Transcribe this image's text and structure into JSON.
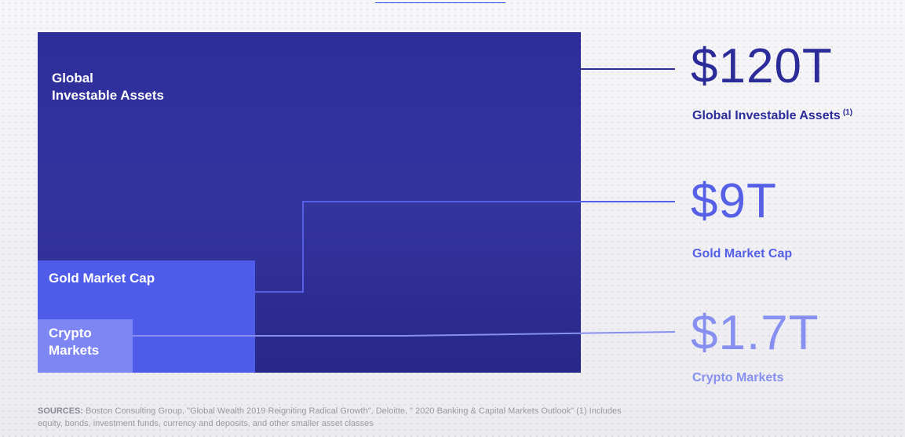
{
  "chart_data": {
    "type": "nested-area",
    "unit": "USD trillions",
    "items": [
      {
        "key": "global",
        "box_label": "Global\nInvestable Assets",
        "value": 120,
        "value_text": "$120T",
        "caption": "Global Investable Assets",
        "footnote": "(1)",
        "color": "#2e2e9b",
        "text_color": "#2b2b9a"
      },
      {
        "key": "gold",
        "box_label": "Gold Market Cap",
        "value": 9,
        "value_text": "$9T",
        "caption": "Gold Market Cap",
        "footnote": "",
        "color": "#4f5ce9",
        "text_color": "#5560e6"
      },
      {
        "key": "crypto",
        "box_label": "Crypto\nMarkets",
        "value": 1.7,
        "value_text": "$1.7T",
        "caption": "Crypto Markets",
        "footnote": "",
        "color": "#7d86f2",
        "text_color": "#8790f0"
      }
    ]
  },
  "sources": {
    "label": "SOURCES:",
    "text": "Boston Consulting Group, \"Global Wealth 2019 Reigniting Radical Growth\", Deloitte, \" 2020 Banking & Capital Markets Outlook\" (1) Includes equity, bonds, investment funds, currency and deposits, and other smaller asset classes"
  },
  "colors": {
    "connector_global": "#2e2e9b",
    "connector_gold": "#5560e6",
    "connector_crypto": "#8790f0"
  }
}
